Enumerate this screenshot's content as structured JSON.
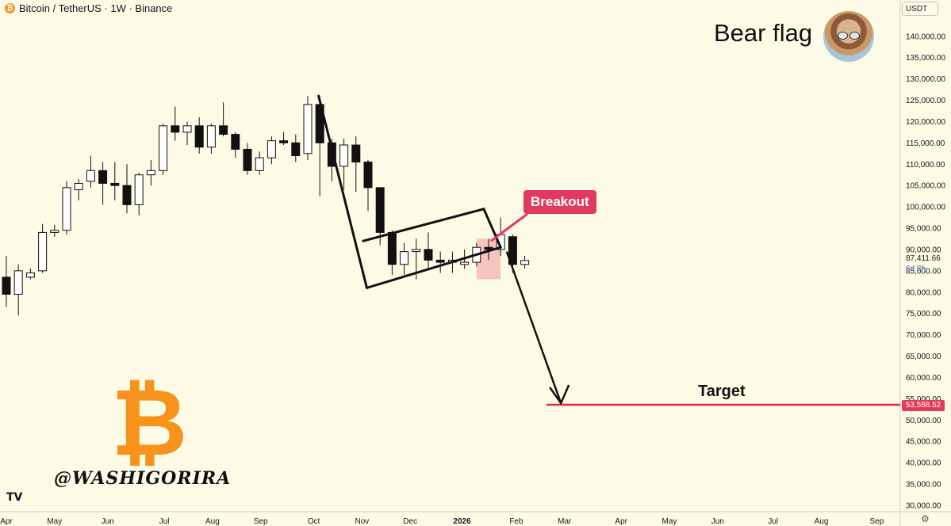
{
  "header": {
    "symbol": "Bitcoin / TetherUS · 1W · Binance",
    "coin_icon": "bitcoin-coin-icon"
  },
  "title": "Bear flag",
  "currency": "USDT",
  "current_price": "87,411.66",
  "countdown": "6d 8h",
  "breakout_label": "Breakout",
  "target_label": "Target",
  "target_price": "53,588.52",
  "watermark": "@WASHIGORIRA",
  "brand_logo": "TV",
  "colors": {
    "background": "#fdfbe6",
    "accent": "#e03b5e",
    "bitcoin": "#f7931a",
    "price_label": "#5a6db2"
  },
  "chart_data": {
    "type": "candlestick",
    "y_axis": {
      "ylim": [
        28500,
        148500
      ],
      "ticks": [
        30000,
        35000,
        40000,
        45000,
        50000,
        55000,
        60000,
        65000,
        70000,
        75000,
        80000,
        85000,
        90000,
        95000,
        100000,
        105000,
        110000,
        115000,
        120000,
        125000,
        130000,
        135000,
        140000
      ],
      "tick_labels": [
        "30,000.00",
        "35,000.00",
        "40,000.00",
        "45,000.00",
        "50,000.00",
        "55,000.00",
        "60,000.00",
        "65,000.00",
        "70,000.00",
        "75,000.00",
        "80,000.00",
        "85,000.00",
        "90,000.00",
        "95,000.00",
        "100,000.00",
        "105,000.00",
        "110,000.00",
        "115,000.00",
        "120,000.00",
        "125,000.00",
        "130,000.00",
        "135,000.00",
        "140,000.00"
      ]
    },
    "x_labels": [
      {
        "label": "Apr",
        "week": 0,
        "bold": false
      },
      {
        "label": "May",
        "week": 4,
        "bold": false
      },
      {
        "label": "Jun",
        "week": 8.4,
        "bold": false
      },
      {
        "label": "Jul",
        "week": 13.1,
        "bold": false
      },
      {
        "label": "Aug",
        "week": 17.1,
        "bold": false
      },
      {
        "label": "Sep",
        "week": 21.1,
        "bold": false
      },
      {
        "label": "Oct",
        "week": 25.5,
        "bold": false
      },
      {
        "label": "Nov",
        "week": 29.5,
        "bold": false
      },
      {
        "label": "Dec",
        "week": 33.5,
        "bold": false
      },
      {
        "label": "2026",
        "week": 37.8,
        "bold": true
      },
      {
        "label": "Feb",
        "week": 42.3,
        "bold": false
      },
      {
        "label": "Mar",
        "week": 46.3,
        "bold": false
      },
      {
        "label": "Apr",
        "week": 51,
        "bold": false
      },
      {
        "label": "May",
        "week": 55,
        "bold": false
      },
      {
        "label": "Jun",
        "week": 59,
        "bold": false
      },
      {
        "label": "Jul",
        "week": 63.6,
        "bold": false
      },
      {
        "label": "Aug",
        "week": 67.6,
        "bold": false
      },
      {
        "label": "Sep",
        "week": 72.2,
        "bold": false
      }
    ],
    "candles": [
      {
        "o": 83500,
        "h": 88500,
        "l": 76500,
        "c": 79500
      },
      {
        "o": 79500,
        "h": 86500,
        "l": 74500,
        "c": 85000
      },
      {
        "o": 83500,
        "h": 85500,
        "l": 83000,
        "c": 84500
      },
      {
        "o": 85000,
        "h": 96000,
        "l": 84500,
        "c": 94000
      },
      {
        "o": 94000,
        "h": 95800,
        "l": 93000,
        "c": 94500
      },
      {
        "o": 94500,
        "h": 106000,
        "l": 93500,
        "c": 104500
      },
      {
        "o": 104000,
        "h": 106500,
        "l": 101500,
        "c": 105500
      },
      {
        "o": 106000,
        "h": 112000,
        "l": 104500,
        "c": 108500
      },
      {
        "o": 108500,
        "h": 110500,
        "l": 100500,
        "c": 105500
      },
      {
        "o": 105500,
        "h": 110500,
        "l": 101500,
        "c": 105000
      },
      {
        "o": 105000,
        "h": 110000,
        "l": 98500,
        "c": 100500
      },
      {
        "o": 100500,
        "h": 108000,
        "l": 98000,
        "c": 107500
      },
      {
        "o": 107500,
        "h": 111000,
        "l": 105000,
        "c": 108500
      },
      {
        "o": 108500,
        "h": 119500,
        "l": 107500,
        "c": 119000
      },
      {
        "o": 119000,
        "h": 123500,
        "l": 115500,
        "c": 117500
      },
      {
        "o": 117500,
        "h": 120000,
        "l": 114500,
        "c": 119000
      },
      {
        "o": 119000,
        "h": 121000,
        "l": 112500,
        "c": 114000
      },
      {
        "o": 114000,
        "h": 119500,
        "l": 112500,
        "c": 119000
      },
      {
        "o": 119000,
        "h": 124500,
        "l": 116500,
        "c": 117000
      },
      {
        "o": 117000,
        "h": 117500,
        "l": 111500,
        "c": 113500
      },
      {
        "o": 113500,
        "h": 115000,
        "l": 107500,
        "c": 108500
      },
      {
        "o": 108500,
        "h": 113000,
        "l": 107500,
        "c": 111500
      },
      {
        "o": 111500,
        "h": 116500,
        "l": 110000,
        "c": 115500
      },
      {
        "o": 115500,
        "h": 117500,
        "l": 114500,
        "c": 115000
      },
      {
        "o": 115000,
        "h": 117000,
        "l": 110500,
        "c": 112000
      },
      {
        "o": 112500,
        "h": 126000,
        "l": 111000,
        "c": 124000
      },
      {
        "o": 124000,
        "h": 126000,
        "l": 102500,
        "c": 115000
      },
      {
        "o": 115000,
        "h": 116000,
        "l": 106000,
        "c": 109500
      },
      {
        "o": 109500,
        "h": 116000,
        "l": 104000,
        "c": 114500
      },
      {
        "o": 114500,
        "h": 116500,
        "l": 103500,
        "c": 110500
      },
      {
        "o": 110500,
        "h": 111000,
        "l": 99000,
        "c": 104500
      },
      {
        "o": 104500,
        "h": 104500,
        "l": 91000,
        "c": 94000
      },
      {
        "o": 94000,
        "h": 94500,
        "l": 84000,
        "c": 86500
      },
      {
        "o": 86500,
        "h": 91500,
        "l": 84000,
        "c": 89500
      },
      {
        "o": 89500,
        "h": 92500,
        "l": 83000,
        "c": 90000
      },
      {
        "o": 90000,
        "h": 94000,
        "l": 85500,
        "c": 87500
      },
      {
        "o": 87500,
        "h": 89500,
        "l": 84500,
        "c": 87000
      },
      {
        "o": 87000,
        "h": 89500,
        "l": 84500,
        "c": 87500
      },
      {
        "o": 86500,
        "h": 90000,
        "l": 85500,
        "c": 87000
      },
      {
        "o": 87000,
        "h": 91500,
        "l": 86000,
        "c": 90500
      },
      {
        "o": 90500,
        "h": 92500,
        "l": 87500,
        "c": 90000
      },
      {
        "o": 90000,
        "h": 97500,
        "l": 88500,
        "c": 93500
      },
      {
        "o": 93000,
        "h": 93500,
        "l": 84500,
        "c": 86500
      },
      {
        "o": 86500,
        "h": 88500,
        "l": 85500,
        "c": 87400
      }
    ],
    "annotations": {
      "flagpole": [
        [
          25.9,
          126000
        ],
        [
          29.9,
          81000
        ]
      ],
      "flag_upper": [
        [
          29.6,
          92000
        ],
        [
          39.6,
          99500
        ]
      ],
      "flag_lower": [
        [
          29.9,
          81000
        ],
        [
          41.0,
          90500
        ]
      ],
      "flag_right": [
        [
          39.6,
          99500
        ],
        [
          41.0,
          90500
        ]
      ],
      "breakout_box": {
        "week_from": 39.0,
        "week_to": 41.0,
        "price_from": 92500,
        "price_to": 83000
      },
      "arrow": [
        [
          41.5,
          89500
        ],
        [
          46.0,
          53588.52
        ]
      ],
      "target_price": 53588.52,
      "target_from_week": 44.8
    }
  }
}
